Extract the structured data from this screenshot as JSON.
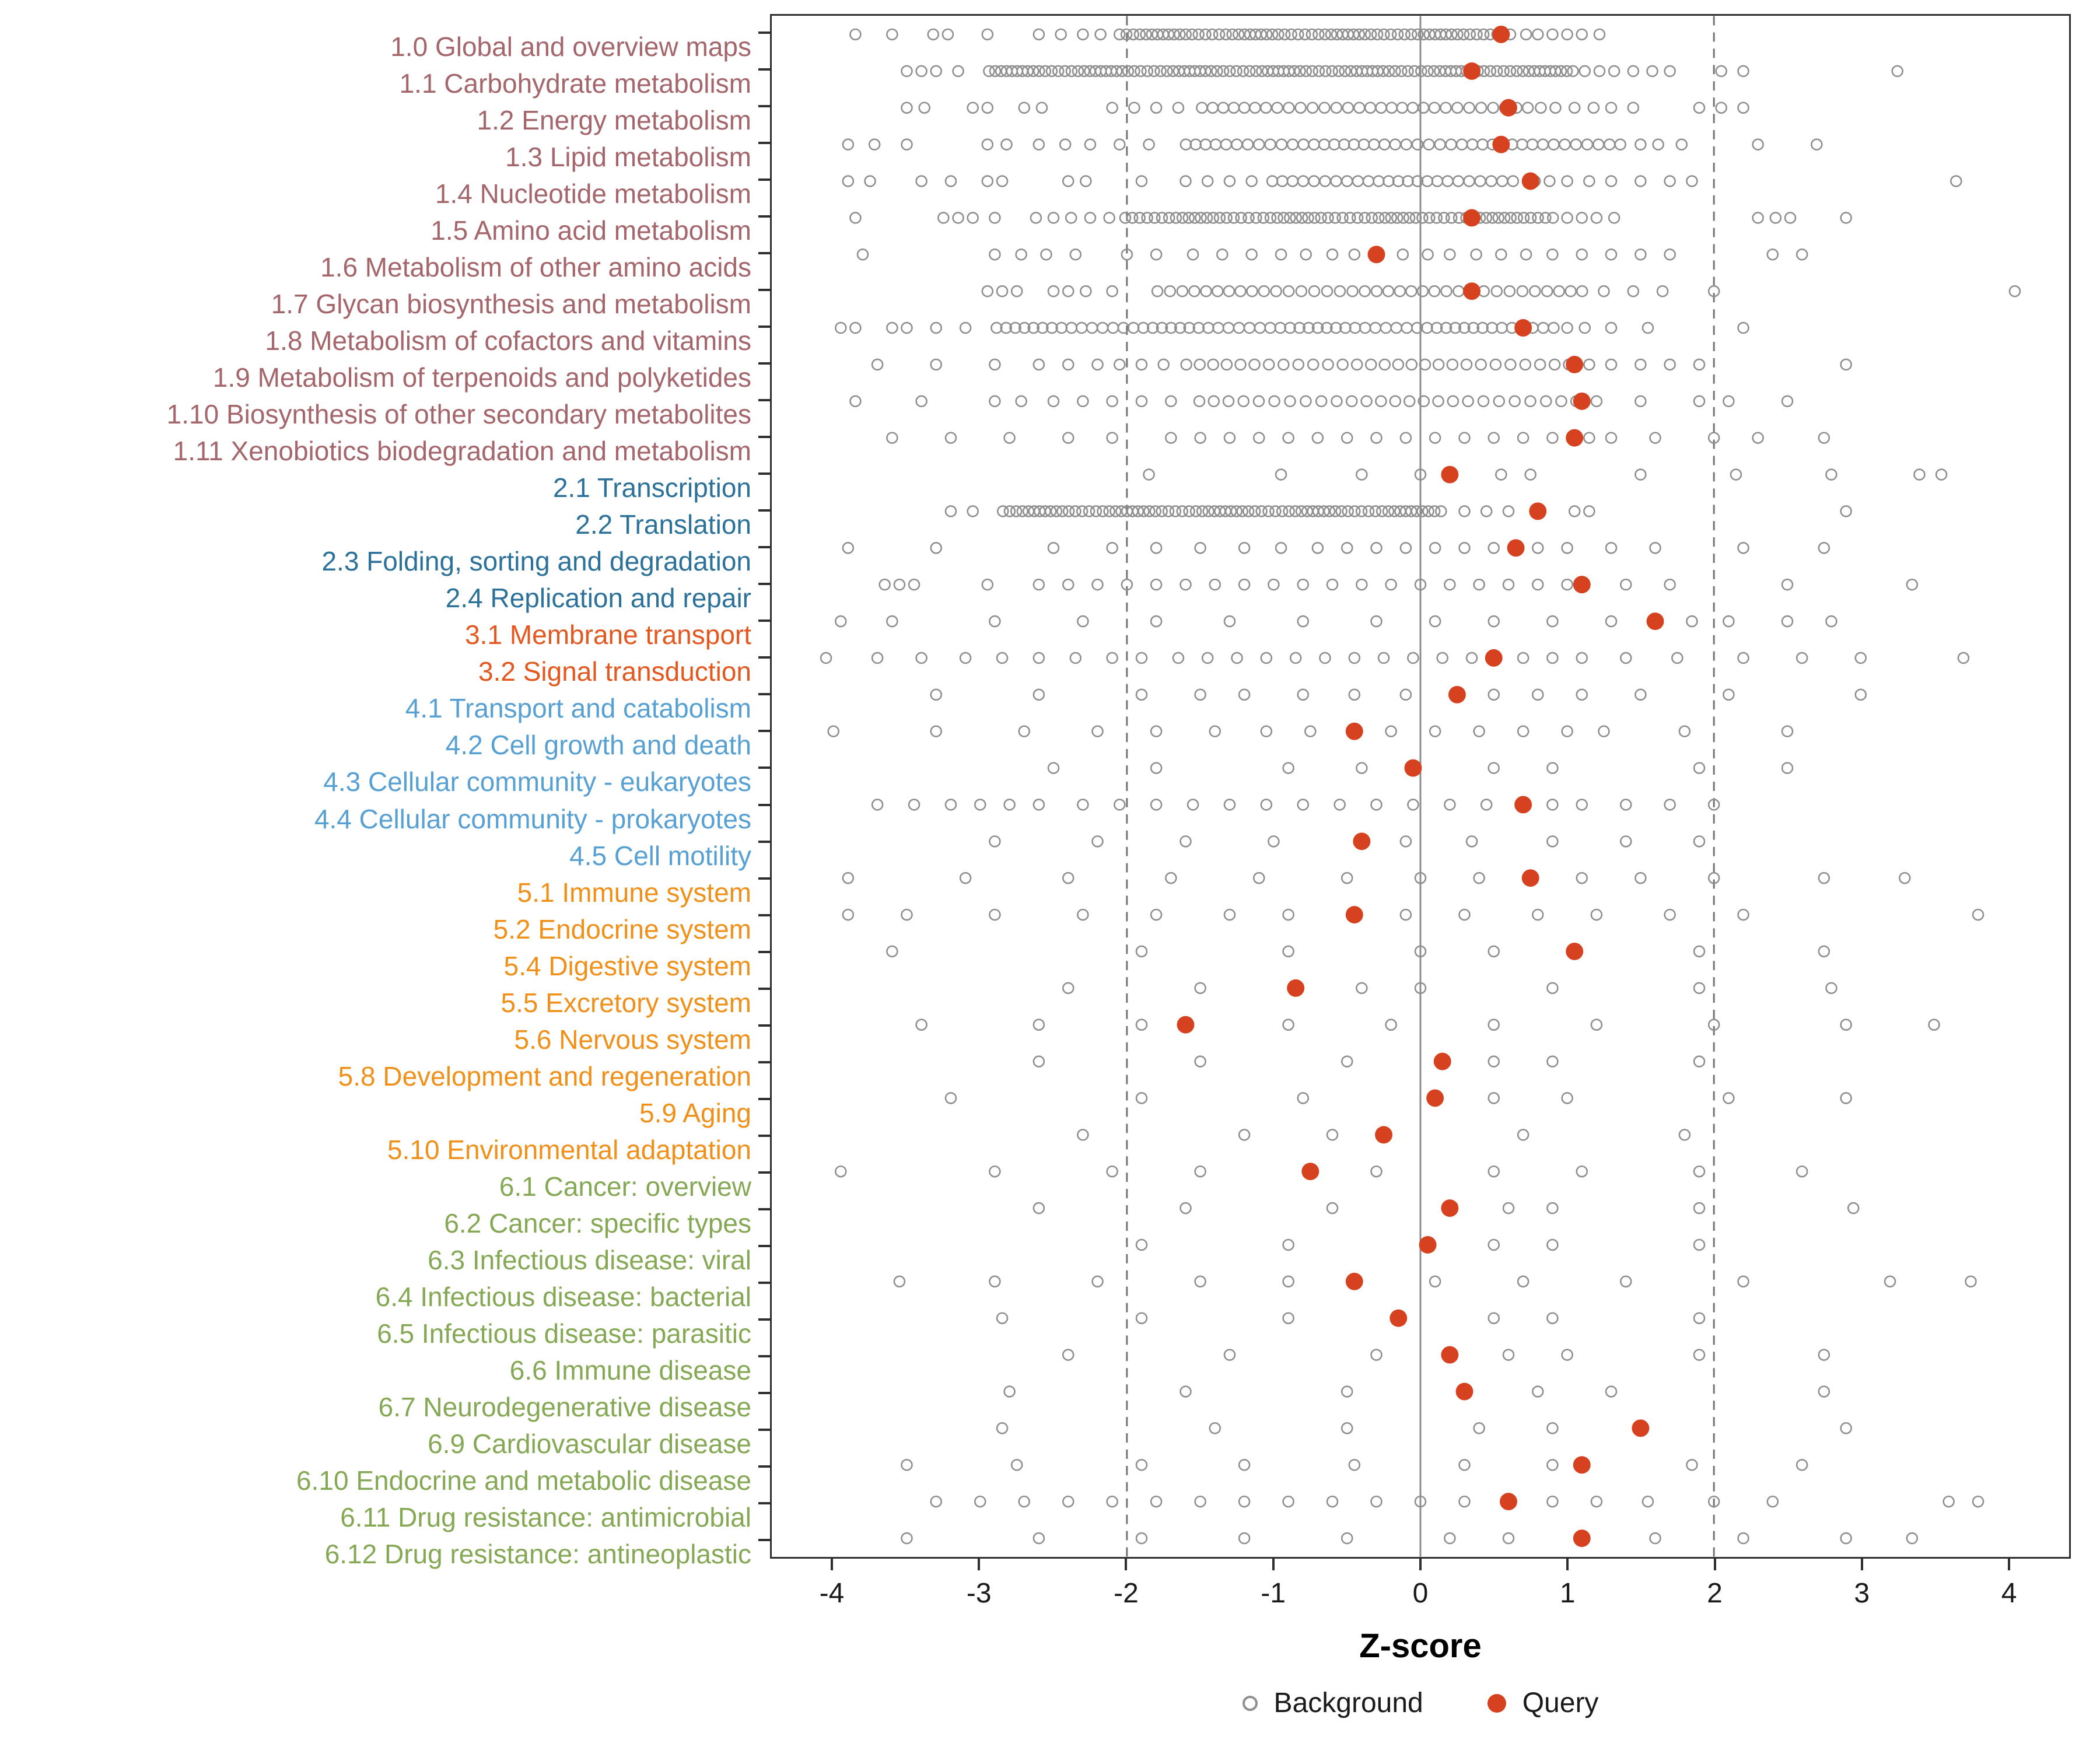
{
  "colors": {
    "query": "#d6421f",
    "background_stroke": "#8f8f8f",
    "dashed_line": "#737373",
    "zero_line": "#8c8c8c",
    "panel_border": "#2f2f2f",
    "axis_text": "#1a1a1a",
    "groups": {
      "1": "#a4656b",
      "2": "#2b7199",
      "3": "#e4571e",
      "4": "#57a0d3",
      "5": "#f09019",
      "6": "#85a854"
    }
  },
  "chart_data": {
    "type": "scatter",
    "title": "",
    "xlabel": "Z-score",
    "ylabel": "",
    "xlim": [
      -4.42,
      4.42
    ],
    "x_ticks": [
      -4,
      -3,
      -2,
      -1,
      0,
      1,
      2,
      3,
      4
    ],
    "grid": false,
    "legend_position": "bottom",
    "reference_lines": {
      "dashed": [
        -2,
        2
      ],
      "solid": [
        0
      ]
    },
    "legend": [
      {
        "label": "Background",
        "marker": "open-gray-circle"
      },
      {
        "label": "Query",
        "marker": "filled-red-circle"
      }
    ],
    "rows": [
      {
        "label": "1.0 Global and overview maps",
        "group": "1",
        "query": 0.55,
        "band": {
          "from": -2.05,
          "to": 0.6,
          "count": 64
        },
        "background": [
          -3.85,
          -3.6,
          -3.32,
          -3.22,
          -2.95,
          -2.6,
          -2.45,
          -2.3,
          -2.18,
          0.72,
          0.8,
          0.9,
          1.0,
          1.1,
          1.22
        ]
      },
      {
        "label": "1.1 Carbohydrate metabolism",
        "group": "1",
        "query": 0.35,
        "band": {
          "from": -2.95,
          "to": 1.05,
          "count": 100
        },
        "background": [
          -3.5,
          -3.4,
          -3.3,
          -3.15,
          1.12,
          1.22,
          1.32,
          1.45,
          1.58,
          1.7,
          2.05,
          2.2,
          3.25
        ]
      },
      {
        "label": "1.2 Energy metabolism",
        "group": "1",
        "query": 0.6,
        "band": {
          "from": -1.5,
          "to": 0.72,
          "count": 30
        },
        "background": [
          -3.5,
          -3.38,
          -3.05,
          -2.95,
          -2.7,
          -2.58,
          -2.1,
          -1.95,
          -1.8,
          -1.65,
          0.82,
          0.92,
          1.05,
          1.18,
          1.3,
          1.45,
          1.9,
          2.05,
          2.2
        ]
      },
      {
        "label": "1.3 Lipid metabolism",
        "group": "1",
        "query": 0.55,
        "band": {
          "from": -1.6,
          "to": 1.35,
          "count": 42
        },
        "background": [
          -3.9,
          -3.72,
          -3.5,
          -2.95,
          -2.82,
          -2.6,
          -2.42,
          -2.25,
          -2.05,
          -1.85,
          1.5,
          1.62,
          1.78,
          2.3,
          2.7
        ]
      },
      {
        "label": "1.4 Nucleotide metabolism",
        "group": "1",
        "query": 0.75,
        "band": {
          "from": -1.0,
          "to": 0.62,
          "count": 24
        },
        "background": [
          -3.9,
          -3.75,
          -3.4,
          -3.2,
          -2.95,
          -2.85,
          -2.4,
          -2.28,
          -1.9,
          -1.6,
          -1.45,
          -1.3,
          -1.15,
          0.78,
          0.88,
          1.0,
          1.15,
          1.3,
          1.5,
          1.7,
          1.85,
          3.65
        ]
      },
      {
        "label": "1.5 Amino acid metabolism",
        "group": "1",
        "query": 0.35,
        "band": {
          "from": -2.0,
          "to": 0.9,
          "count": 64
        },
        "background": [
          -3.85,
          -3.25,
          -3.15,
          -3.05,
          -2.9,
          -2.62,
          -2.5,
          -2.38,
          -2.25,
          -2.12,
          1.0,
          1.1,
          1.2,
          1.32,
          2.3,
          2.42,
          2.52,
          2.9
        ]
      },
      {
        "label": "1.6 Metabolism of other amino acids",
        "group": "1",
        "query": -0.3,
        "background": [
          -3.8,
          -2.9,
          -2.72,
          -2.55,
          -2.35,
          -2.0,
          -1.8,
          -1.55,
          -1.35,
          -1.15,
          -0.95,
          -0.78,
          -0.6,
          -0.45,
          -0.12,
          0.05,
          0.2,
          0.38,
          0.55,
          0.72,
          0.9,
          1.1,
          1.3,
          1.5,
          1.7,
          2.4,
          2.6
        ]
      },
      {
        "label": "1.7 Glycan biosynthesis and metabolism",
        "group": "1",
        "query": 0.35,
        "band": {
          "from": -1.8,
          "to": 1.1,
          "count": 36
        },
        "background": [
          -2.95,
          -2.85,
          -2.75,
          -2.5,
          -2.4,
          -2.28,
          -2.1,
          1.25,
          1.45,
          1.65,
          2.0,
          4.05
        ]
      },
      {
        "label": "1.8 Metabolism of cofactors and vitamins",
        "group": "1",
        "query": 0.7,
        "band": {
          "from": -2.9,
          "to": 0.9,
          "count": 58
        },
        "background": [
          -3.95,
          -3.85,
          -3.6,
          -3.5,
          -3.3,
          -3.1,
          1.0,
          1.12,
          1.3,
          1.55,
          2.2
        ]
      },
      {
        "label": "1.9 Metabolism of terpenoids and polyketides",
        "group": "1",
        "query": 1.05,
        "band": {
          "from": -1.6,
          "to": 1.0,
          "count": 28
        },
        "background": [
          -3.7,
          -3.3,
          -2.9,
          -2.6,
          -2.4,
          -2.2,
          -2.05,
          -1.9,
          -1.75,
          1.15,
          1.3,
          1.5,
          1.7,
          1.9,
          2.9
        ]
      },
      {
        "label": "1.10 Biosynthesis of other secondary metabolites",
        "group": "1",
        "query": 1.1,
        "band": {
          "from": -1.5,
          "to": 1.05,
          "count": 26
        },
        "background": [
          -3.85,
          -3.4,
          -2.9,
          -2.72,
          -2.5,
          -2.3,
          -2.1,
          -1.9,
          -1.7,
          1.2,
          1.5,
          1.9,
          2.1,
          2.5
        ]
      },
      {
        "label": "1.11 Xenobiotics biodegradation and metabolism",
        "group": "1",
        "query": 1.05,
        "background": [
          -3.6,
          -3.2,
          -2.8,
          -2.4,
          -2.1,
          -1.7,
          -1.5,
          -1.3,
          -1.1,
          -0.9,
          -0.7,
          -0.5,
          -0.3,
          -0.1,
          0.1,
          0.3,
          0.5,
          0.7,
          0.9,
          1.15,
          1.3,
          1.6,
          2.0,
          2.3,
          2.75
        ]
      },
      {
        "label": "2.1 Transcription",
        "group": "2",
        "query": 0.2,
        "background": [
          -1.85,
          -0.95,
          -0.4,
          0.0,
          0.55,
          0.75,
          1.5,
          2.15,
          2.8,
          3.4,
          3.55
        ]
      },
      {
        "label": "2.2 Translation",
        "group": "2",
        "query": 0.8,
        "band": {
          "from": -2.85,
          "to": 0.15,
          "count": 72
        },
        "background": [
          -3.2,
          -3.05,
          0.3,
          0.45,
          0.6,
          1.05,
          1.15,
          2.9
        ]
      },
      {
        "label": "2.3 Folding, sorting and degradation",
        "group": "2",
        "query": 0.65,
        "background": [
          -3.9,
          -3.3,
          -2.5,
          -2.1,
          -1.8,
          -1.5,
          -1.2,
          -0.95,
          -0.7,
          -0.5,
          -0.3,
          -0.1,
          0.1,
          0.3,
          0.5,
          0.8,
          1.0,
          1.3,
          1.6,
          2.2,
          2.75
        ]
      },
      {
        "label": "2.4 Replication and repair",
        "group": "2",
        "query": 1.1,
        "background": [
          -3.65,
          -3.55,
          -3.45,
          -2.95,
          -2.6,
          -2.4,
          -2.2,
          -2.0,
          -1.8,
          -1.6,
          -1.4,
          -1.2,
          -1.0,
          -0.8,
          -0.6,
          -0.4,
          -0.2,
          0.0,
          0.2,
          0.4,
          0.6,
          0.8,
          1.0,
          1.4,
          1.7,
          2.5,
          3.35
        ]
      },
      {
        "label": "3.1 Membrane transport",
        "group": "3",
        "query": 1.6,
        "background": [
          -3.95,
          -3.6,
          -2.9,
          -2.3,
          -1.8,
          -1.3,
          -0.8,
          -0.3,
          0.1,
          0.5,
          0.9,
          1.3,
          1.85,
          2.1,
          2.5,
          2.8
        ]
      },
      {
        "label": "3.2 Signal transduction",
        "group": "3",
        "query": 0.5,
        "background": [
          -4.05,
          -3.7,
          -3.4,
          -3.1,
          -2.85,
          -2.6,
          -2.35,
          -2.1,
          -1.9,
          -1.65,
          -1.45,
          -1.25,
          -1.05,
          -0.85,
          -0.65,
          -0.45,
          -0.25,
          -0.05,
          0.15,
          0.35,
          0.7,
          0.9,
          1.1,
          1.4,
          1.75,
          2.2,
          2.6,
          3.0,
          3.7
        ]
      },
      {
        "label": "4.1 Transport and catabolism",
        "group": "4",
        "query": 0.25,
        "background": [
          -3.3,
          -2.6,
          -1.9,
          -1.5,
          -1.2,
          -0.8,
          -0.45,
          -0.1,
          0.5,
          0.8,
          1.1,
          1.5,
          2.1,
          3.0
        ]
      },
      {
        "label": "4.2 Cell growth and death",
        "group": "4",
        "query": -0.45,
        "background": [
          -4.0,
          -3.3,
          -2.7,
          -2.2,
          -1.8,
          -1.4,
          -1.05,
          -0.75,
          -0.2,
          0.1,
          0.4,
          0.7,
          1.0,
          1.25,
          1.8,
          2.5
        ]
      },
      {
        "label": "4.3 Cellular community - eukaryotes",
        "group": "4",
        "query": -0.05,
        "background": [
          -2.5,
          -1.8,
          -0.9,
          -0.4,
          0.5,
          0.9,
          1.9,
          2.5
        ]
      },
      {
        "label": "4.4 Cellular community - prokaryotes",
        "group": "4",
        "query": 0.7,
        "background": [
          -3.7,
          -3.45,
          -3.2,
          -3.0,
          -2.8,
          -2.6,
          -2.3,
          -2.05,
          -1.8,
          -1.55,
          -1.3,
          -1.05,
          -0.8,
          -0.55,
          -0.3,
          -0.05,
          0.2,
          0.45,
          0.9,
          1.1,
          1.4,
          1.7,
          2.0
        ]
      },
      {
        "label": "4.5 Cell motility",
        "group": "4",
        "query": -0.4,
        "background": [
          -2.9,
          -2.2,
          -1.6,
          -1.0,
          -0.1,
          0.35,
          0.9,
          1.4,
          1.9
        ]
      },
      {
        "label": "5.1 Immune system",
        "group": "5",
        "query": 0.75,
        "background": [
          -3.9,
          -3.1,
          -2.4,
          -1.7,
          -1.1,
          -0.5,
          0.0,
          0.4,
          1.1,
          1.5,
          2.0,
          2.75,
          3.3
        ]
      },
      {
        "label": "5.2 Endocrine system",
        "group": "5",
        "query": -0.45,
        "background": [
          -3.9,
          -3.5,
          -2.9,
          -2.3,
          -1.8,
          -1.3,
          -0.9,
          -0.1,
          0.3,
          0.8,
          1.2,
          1.7,
          2.2,
          3.8
        ]
      },
      {
        "label": "5.4 Digestive system",
        "group": "5",
        "query": 1.05,
        "background": [
          -3.6,
          -1.9,
          -0.9,
          0.0,
          0.5,
          1.9,
          2.75
        ]
      },
      {
        "label": "5.5 Excretory system",
        "group": "5",
        "query": -0.85,
        "background": [
          -2.4,
          -1.5,
          -0.4,
          0.0,
          0.9,
          1.9,
          2.8
        ]
      },
      {
        "label": "5.6 Nervous system",
        "group": "5",
        "query": -1.6,
        "background": [
          -3.4,
          -2.6,
          -1.9,
          -0.9,
          -0.2,
          0.5,
          1.2,
          2.0,
          2.9,
          3.5
        ]
      },
      {
        "label": "5.8 Development and regeneration",
        "group": "5",
        "query": 0.15,
        "background": [
          -2.6,
          -1.5,
          -0.5,
          0.5,
          0.9,
          1.9
        ]
      },
      {
        "label": "5.9 Aging",
        "group": "5",
        "query": 0.1,
        "background": [
          -3.2,
          -1.9,
          -0.8,
          0.5,
          1.0,
          2.1,
          2.9
        ]
      },
      {
        "label": "5.10 Environmental adaptation",
        "group": "5",
        "query": -0.25,
        "background": [
          -2.3,
          -1.2,
          -0.6,
          0.7,
          1.8
        ]
      },
      {
        "label": "6.1 Cancer: overview",
        "group": "6",
        "query": -0.75,
        "background": [
          -3.95,
          -2.9,
          -2.1,
          -1.5,
          -0.3,
          0.5,
          1.1,
          1.9,
          2.6
        ]
      },
      {
        "label": "6.2 Cancer: specific types",
        "group": "6",
        "query": 0.2,
        "background": [
          -2.6,
          -1.6,
          -0.6,
          0.6,
          0.9,
          1.9,
          2.95
        ]
      },
      {
        "label": "6.3 Infectious disease: viral",
        "group": "6",
        "query": 0.05,
        "background": [
          -1.9,
          -0.9,
          0.5,
          0.9,
          1.9
        ]
      },
      {
        "label": "6.4 Infectious disease: bacterial",
        "group": "6",
        "query": -0.45,
        "background": [
          -3.55,
          -2.9,
          -2.2,
          -1.5,
          -0.9,
          0.1,
          0.7,
          1.4,
          2.2,
          3.2,
          3.75
        ]
      },
      {
        "label": "6.5 Infectious disease: parasitic",
        "group": "6",
        "query": -0.15,
        "background": [
          -2.85,
          -1.9,
          -0.9,
          0.5,
          0.9,
          1.9
        ]
      },
      {
        "label": "6.6 Immune disease",
        "group": "6",
        "query": 0.2,
        "background": [
          -2.4,
          -1.3,
          -0.3,
          0.6,
          1.0,
          1.9,
          2.75
        ]
      },
      {
        "label": "6.7 Neurodegenerative disease",
        "group": "6",
        "query": 0.3,
        "background": [
          -2.8,
          -1.6,
          -0.5,
          0.8,
          1.3,
          2.75
        ]
      },
      {
        "label": "6.9 Cardiovascular disease",
        "group": "6",
        "query": 1.5,
        "background": [
          -2.85,
          -1.4,
          -0.5,
          0.4,
          0.9,
          2.9
        ]
      },
      {
        "label": "6.10 Endocrine and metabolic disease",
        "group": "6",
        "query": 1.1,
        "background": [
          -3.5,
          -2.75,
          -1.9,
          -1.2,
          -0.45,
          0.3,
          0.9,
          1.85,
          2.6
        ]
      },
      {
        "label": "6.11 Drug resistance: antimicrobial",
        "group": "6",
        "query": 0.6,
        "background": [
          -3.3,
          -3.0,
          -2.7,
          -2.4,
          -2.1,
          -1.8,
          -1.5,
          -1.2,
          -0.9,
          -0.6,
          -0.3,
          0.0,
          0.3,
          0.9,
          1.2,
          1.55,
          2.0,
          2.4,
          3.6,
          3.8
        ]
      },
      {
        "label": "6.12 Drug resistance: antineoplastic",
        "group": "6",
        "query": 1.1,
        "background": [
          -3.5,
          -2.6,
          -1.9,
          -1.2,
          -0.5,
          0.2,
          0.6,
          1.6,
          2.2,
          2.9,
          3.35
        ]
      }
    ]
  }
}
